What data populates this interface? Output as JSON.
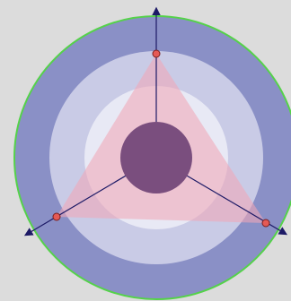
{
  "colors": {
    "background": "#dcdcdc",
    "outer_boundary": "#55d24a",
    "ring_dark": "#8a90c6",
    "ring_mid": "#c9cbe6",
    "ring_inner": "#e8e9f5",
    "triangle_fill": "#f2a7b6",
    "center_disk": "#7a4e7e",
    "axis": "#1d1a66",
    "vertex_fill": "#e55a55",
    "vertex_stroke": "#7a1f1f"
  },
  "diagram": {
    "shape": "three concentric bands with an inscribed triangle and three radial axes",
    "axes_count": 3,
    "vertices_count": 3
  }
}
